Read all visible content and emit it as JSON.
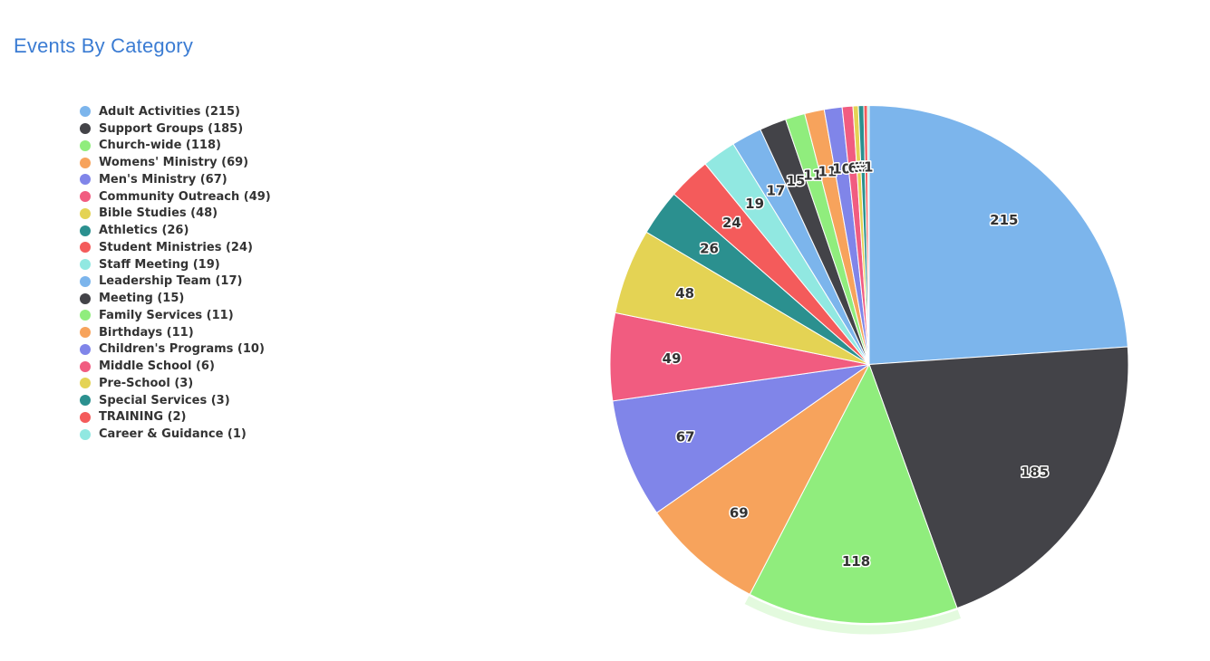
{
  "chart_data": {
    "type": "pie",
    "title": "Events By Category",
    "title_color": "#3b7cd3",
    "legend_position": "left",
    "start_angle_deg": 0,
    "direction": "clockwise",
    "slice_border_color": "#ffffff",
    "data_labels": "values inside slices",
    "highlighted_point": "Church-wide",
    "points": [
      {
        "name": "Adult Activities",
        "value": 215,
        "color": "#7cb5ec",
        "legend_label": "Adult Activities (215)"
      },
      {
        "name": "Support Groups",
        "value": 185,
        "color": "#434348",
        "legend_label": "Support Groups (185)"
      },
      {
        "name": "Church-wide",
        "value": 118,
        "color": "#90ed7d",
        "legend_label": "Church-wide (118)",
        "highlighted": true
      },
      {
        "name": "Womens' Ministry",
        "value": 69,
        "color": "#f7a35c",
        "legend_label": "Womens' Ministry (69)"
      },
      {
        "name": "Men's Ministry",
        "value": 67,
        "color": "#8085e9",
        "legend_label": "Men's Ministry (67)"
      },
      {
        "name": "Community Outreach",
        "value": 49,
        "color": "#f15c80",
        "legend_label": "Community Outreach (49)"
      },
      {
        "name": "Bible Studies",
        "value": 48,
        "color": "#e4d354",
        "legend_label": "Bible Studies (48)"
      },
      {
        "name": "Athletics",
        "value": 26,
        "color": "#2b908f",
        "legend_label": "Athletics (26)"
      },
      {
        "name": "Student Ministries",
        "value": 24,
        "color": "#f45b5b",
        "legend_label": "Student Ministries (24)"
      },
      {
        "name": "Staff Meeting",
        "value": 19,
        "color": "#91e8e1",
        "legend_label": "Staff Meeting (19)"
      },
      {
        "name": "Leadership Team",
        "value": 17,
        "color": "#7cb5ec",
        "legend_label": "Leadership Team (17)"
      },
      {
        "name": "Meeting",
        "value": 15,
        "color": "#434348",
        "legend_label": "Meeting (15)"
      },
      {
        "name": "Family Services",
        "value": 11,
        "color": "#90ed7d",
        "legend_label": "Family Services (11)"
      },
      {
        "name": "Birthdays",
        "value": 11,
        "color": "#f7a35c",
        "legend_label": "Birthdays (11)"
      },
      {
        "name": "Children's Programs",
        "value": 10,
        "color": "#8085e9",
        "legend_label": "Children's Programs (10)"
      },
      {
        "name": "Middle School",
        "value": 6,
        "color": "#f15c80",
        "legend_label": "Middle School (6)"
      },
      {
        "name": "Pre-School",
        "value": 3,
        "color": "#e4d354",
        "legend_label": "Pre-School (3)"
      },
      {
        "name": "Special Services",
        "value": 3,
        "color": "#2b908f",
        "legend_label": "Special Services (3)"
      },
      {
        "name": "TRAINING",
        "value": 2,
        "color": "#f45b5b",
        "legend_label": "TRAINING (2)"
      },
      {
        "name": "Career & Guidance",
        "value": 1,
        "color": "#91e8e1",
        "legend_label": "Career & Guidance (1)"
      }
    ]
  }
}
